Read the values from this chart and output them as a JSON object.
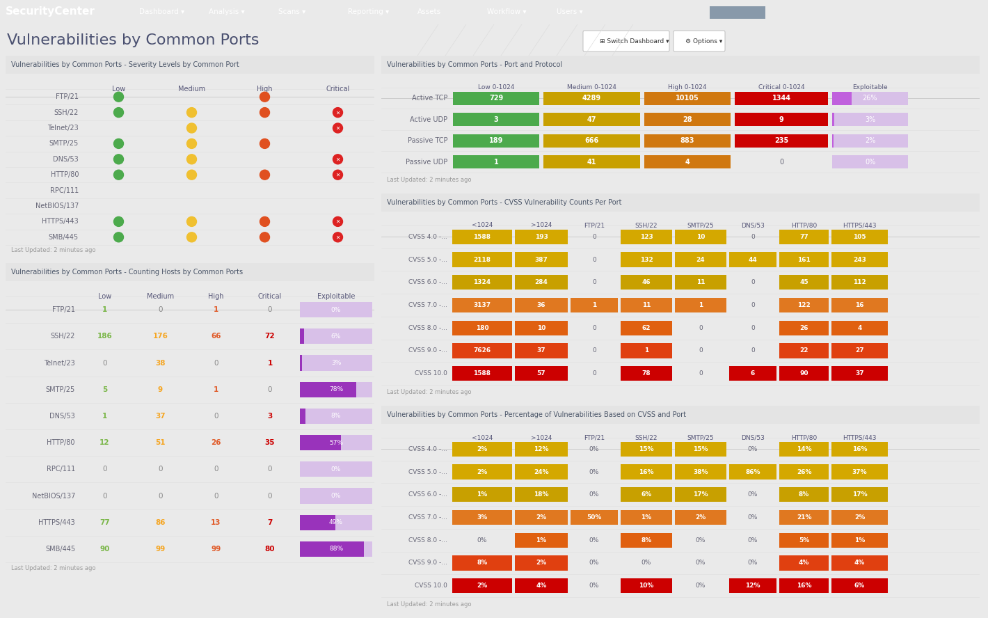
{
  "nav_bg": "#3a4a5c",
  "page_bg": "#eaeaea",
  "panel_bg": "#ffffff",
  "panel_header_bg": "#e4e4e4",
  "nav_title": "SecurityCenter",
  "page_title": "Vulnerabilities by Common Ports",
  "panel1_title": "Vulnerabilities by Common Ports - Severity Levels by Common Port",
  "panel1_rows": [
    {
      "label": "FTP/21",
      "low": true,
      "medium": false,
      "high": true,
      "crit_x": false
    },
    {
      "label": "SSH/22",
      "low": true,
      "medium": true,
      "high": true,
      "crit_x": true
    },
    {
      "label": "Telnet/23",
      "low": false,
      "medium": true,
      "high": false,
      "crit_x": true
    },
    {
      "label": "SMTP/25",
      "low": true,
      "medium": true,
      "high": true,
      "crit_x": false
    },
    {
      "label": "DNS/53",
      "low": true,
      "medium": true,
      "high": false,
      "crit_x": true
    },
    {
      "label": "HTTP/80",
      "low": true,
      "medium": true,
      "high": true,
      "crit_x": true
    },
    {
      "label": "RPC/111",
      "low": false,
      "medium": false,
      "high": false,
      "crit_x": false
    },
    {
      "label": "NetBIOS/137",
      "low": false,
      "medium": false,
      "high": false,
      "crit_x": false
    },
    {
      "label": "HTTPS/443",
      "low": true,
      "medium": true,
      "high": true,
      "crit_x": true
    },
    {
      "label": "SMB/445",
      "low": true,
      "medium": true,
      "high": true,
      "crit_x": true
    }
  ],
  "panel2_title": "Vulnerabilities by Common Ports - Counting Hosts by Common Ports",
  "panel2_rows": [
    {
      "label": "FTP/21",
      "low": "1",
      "medium": "0",
      "high": "1",
      "critical": "0",
      "exploit": "0%",
      "exploit_pct": 0
    },
    {
      "label": "SSH/22",
      "low": "186",
      "medium": "176",
      "high": "66",
      "critical": "72",
      "exploit": "6%",
      "exploit_pct": 6
    },
    {
      "label": "Telnet/23",
      "low": "0",
      "medium": "38",
      "high": "0",
      "critical": "1",
      "exploit": "3%",
      "exploit_pct": 3
    },
    {
      "label": "SMTP/25",
      "low": "5",
      "medium": "9",
      "high": "1",
      "critical": "0",
      "exploit": "78%",
      "exploit_pct": 78
    },
    {
      "label": "DNS/53",
      "low": "1",
      "medium": "37",
      "high": "0",
      "critical": "3",
      "exploit": "8%",
      "exploit_pct": 8
    },
    {
      "label": "HTTP/80",
      "low": "12",
      "medium": "51",
      "high": "26",
      "critical": "35",
      "exploit": "57%",
      "exploit_pct": 57
    },
    {
      "label": "RPC/111",
      "low": "0",
      "medium": "0",
      "high": "0",
      "critical": "0",
      "exploit": "0%",
      "exploit_pct": 0
    },
    {
      "label": "NetBIOS/137",
      "low": "0",
      "medium": "0",
      "high": "0",
      "critical": "0",
      "exploit": "0%",
      "exploit_pct": 0
    },
    {
      "label": "HTTPS/443",
      "low": "77",
      "medium": "86",
      "high": "13",
      "critical": "7",
      "exploit": "49%",
      "exploit_pct": 49
    },
    {
      "label": "SMB/445",
      "low": "90",
      "medium": "99",
      "high": "99",
      "critical": "80",
      "exploit": "88%",
      "exploit_pct": 88
    }
  ],
  "panel3_title": "Vulnerabilities by Common Ports - Port and Protocol",
  "panel3_headers": [
    "",
    "Low 0-1024",
    "Medium 0-1024",
    "High 0-1024",
    "Critical 0-1024",
    "Exploitable"
  ],
  "panel3_rows": [
    {
      "label": "Active TCP",
      "low": "729",
      "medium": "4289",
      "high": "10105",
      "critical": "1344",
      "exploit": "26%",
      "exploit_pct": 26
    },
    {
      "label": "Active UDP",
      "low": "3",
      "medium": "47",
      "high": "28",
      "critical": "9",
      "exploit": "3%",
      "exploit_pct": 3
    },
    {
      "label": "Passive TCP",
      "low": "189",
      "medium": "666",
      "high": "883",
      "critical": "235",
      "exploit": "2%",
      "exploit_pct": 2
    },
    {
      "label": "Passive UDP",
      "low": "1",
      "medium": "41",
      "high": "4",
      "critical": "0",
      "exploit": "0%",
      "exploit_pct": 0
    }
  ],
  "panel4_title": "Vulnerabilities by Common Ports - CVSS Vulnerability Counts Per Port",
  "panel4_headers": [
    "",
    "<1024",
    ">1024",
    "FTP/21",
    "SSH/22",
    "SMTP/25",
    "DNS/53",
    "HTTP/80",
    "HTTPS/443"
  ],
  "panel4_rows": [
    {
      "label": "CVSS 4.0 -...",
      "vals": [
        "1588",
        "193",
        "0",
        "123",
        "10",
        "0",
        "77",
        "105"
      ]
    },
    {
      "label": "CVSS 5.0 -...",
      "vals": [
        "2118",
        "387",
        "0",
        "132",
        "24",
        "44",
        "161",
        "243"
      ]
    },
    {
      "label": "CVSS 6.0 -...",
      "vals": [
        "1324",
        "284",
        "0",
        "46",
        "11",
        "0",
        "45",
        "112"
      ]
    },
    {
      "label": "CVSS 7.0 -...",
      "vals": [
        "3137",
        "36",
        "1",
        "11",
        "1",
        "0",
        "122",
        "16"
      ]
    },
    {
      "label": "CVSS 8.0 -...",
      "vals": [
        "180",
        "10",
        "0",
        "62",
        "0",
        "0",
        "26",
        "4"
      ]
    },
    {
      "label": "CVSS 9.0 -...",
      "vals": [
        "7626",
        "37",
        "0",
        "1",
        "0",
        "0",
        "22",
        "27"
      ]
    },
    {
      "label": "CVSS 10.0",
      "vals": [
        "1588",
        "57",
        "0",
        "78",
        "0",
        "6",
        "90",
        "37"
      ]
    }
  ],
  "panel5_title": "Vulnerabilities by Common Ports - Percentage of Vulnerabilities Based on CVSS and Port",
  "panel5_headers": [
    "",
    "<1024",
    ">1024",
    "FTP/21",
    "SSH/22",
    "SMTP/25",
    "DNS/53",
    "HTTP/80",
    "HTTPS/443"
  ],
  "panel5_rows": [
    {
      "label": "CVSS 4.0 -...",
      "vals": [
        "2%",
        "12%",
        "0%",
        "15%",
        "15%",
        "0%",
        "14%",
        "16%"
      ]
    },
    {
      "label": "CVSS 5.0 -...",
      "vals": [
        "2%",
        "24%",
        "0%",
        "16%",
        "38%",
        "86%",
        "26%",
        "37%"
      ]
    },
    {
      "label": "CVSS 6.0 -...",
      "vals": [
        "1%",
        "18%",
        "0%",
        "6%",
        "17%",
        "0%",
        "8%",
        "17%"
      ]
    },
    {
      "label": "CVSS 7.0 -...",
      "vals": [
        "3%",
        "2%",
        "50%",
        "1%",
        "2%",
        "0%",
        "21%",
        "2%"
      ]
    },
    {
      "label": "CVSS 8.0 -...",
      "vals": [
        "0%",
        "1%",
        "0%",
        "8%",
        "0%",
        "0%",
        "5%",
        "1%"
      ]
    },
    {
      "label": "CVSS 9.0 -...",
      "vals": [
        "8%",
        "2%",
        "0%",
        "0%",
        "0%",
        "0%",
        "4%",
        "4%"
      ]
    },
    {
      "label": "CVSS 10.0",
      "vals": [
        "2%",
        "4%",
        "0%",
        "10%",
        "0%",
        "12%",
        "16%",
        "6%"
      ]
    }
  ],
  "cvss_row_colors": [
    "#d4a800",
    "#d4a800",
    "#c8a000",
    "#e07820",
    "#e06010",
    "#e04010",
    "#cc0000"
  ],
  "color_green": "#4caa4c",
  "color_yellow": "#f0c030",
  "color_high": "#e05020",
  "color_crit_x": "#dd2222",
  "color_low_text": "#7ab648",
  "color_med_text": "#f5a623",
  "color_high_text": "#e05a28",
  "color_crit_text": "#cc0000",
  "color_exploit_bg": "#d8c0e8",
  "color_exploit_fill": "#9933bb",
  "last_updated": "Last Updated: 2 minutes ago"
}
